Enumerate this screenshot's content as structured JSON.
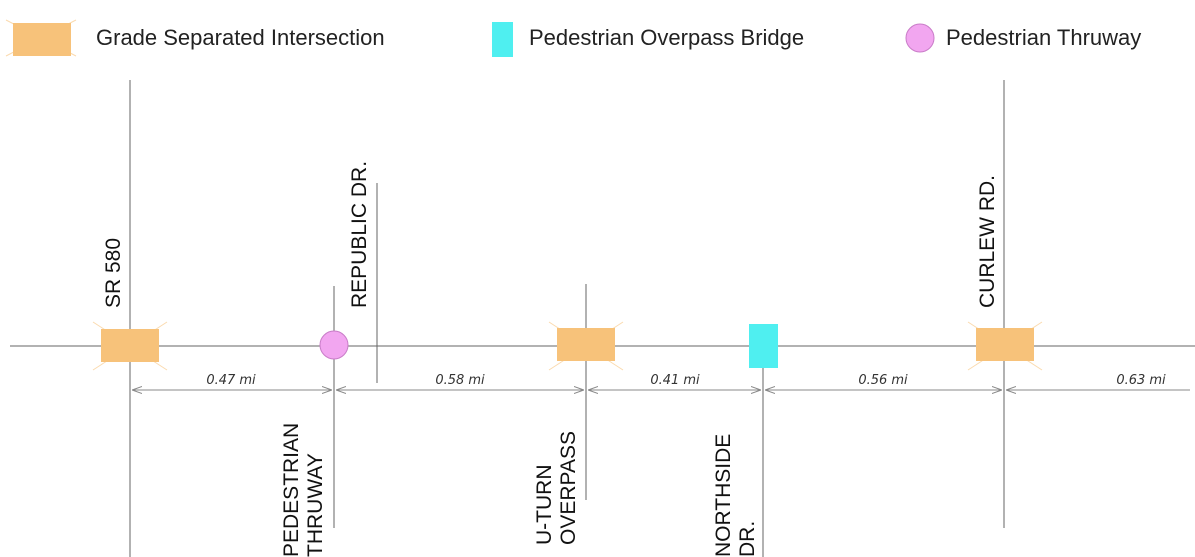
{
  "colors": {
    "grade_separated": "#F7C27A",
    "pedestrian_overpass": "#4FEFF0",
    "pedestrian_thruway": "#F2A6F0",
    "line": "#666666"
  },
  "legend": [
    {
      "label": "Grade Separated Intersection",
      "symbol": "rect",
      "color": "#F7C27A"
    },
    {
      "label": "Pedestrian Overpass Bridge",
      "symbol": "tall-rect",
      "color": "#4FEFF0"
    },
    {
      "label": "Pedestrian Thruway",
      "symbol": "circle",
      "color": "#F2A6F0"
    }
  ],
  "crossings": [
    {
      "label": "SR 580",
      "type": "grade_separated"
    },
    {
      "label": "PEDESTRIAN THRUWAY",
      "type": "pedestrian_thruway"
    },
    {
      "label": "REPUBLIC DR.",
      "type": "none"
    },
    {
      "label": "U-TURN OVERPASS",
      "type": "grade_separated"
    },
    {
      "label": "NORTHSIDE DR.",
      "type": "pedestrian_overpass"
    },
    {
      "label": "CURLEW RD.",
      "type": "grade_separated"
    }
  ],
  "distances": [
    "0.47 mi",
    "0.58 mi",
    "0.41 mi",
    "0.56 mi",
    "0.63 mi"
  ]
}
